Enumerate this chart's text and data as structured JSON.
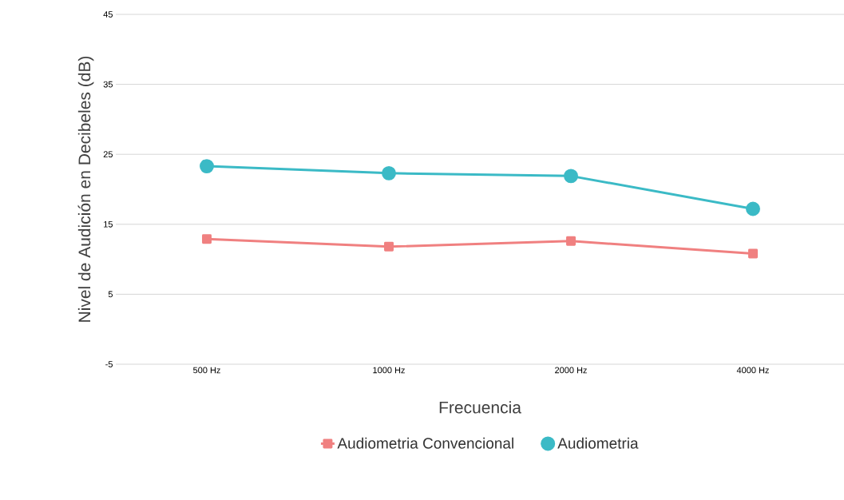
{
  "chart_data": {
    "type": "line",
    "xlabel": "Frecuencia",
    "ylabel": "Nivel de Audición en Decibeles (dB)",
    "categories": [
      "500 Hz",
      "1000 Hz",
      "2000 Hz",
      "4000 Hz"
    ],
    "series": [
      {
        "name": "Audiometria Convencional",
        "color": "#f08080",
        "marker": "square",
        "values": [
          12.9,
          11.8,
          12.6,
          10.8
        ]
      },
      {
        "name": "Audiometria",
        "color": "#3bbac6",
        "marker": "circle",
        "values": [
          23.3,
          22.3,
          21.9,
          17.2
        ]
      }
    ],
    "ylim": [
      -5,
      45
    ],
    "yticks": [
      -5,
      5,
      15,
      25,
      35,
      45
    ],
    "grid": "y",
    "legend": "bottom"
  }
}
